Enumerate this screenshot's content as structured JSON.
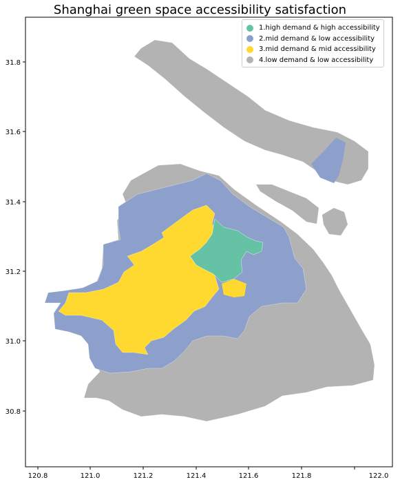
{
  "title": "Shanghai green space accessibility satisfaction",
  "legend": [
    {
      "label": "1.high demand & high accessibility",
      "color": "#66c2a5"
    },
    {
      "label": "2.mid demand & low accessibility",
      "color": "#8da0cb"
    },
    {
      "label": "3.mid demand & mid accessibility",
      "color": "#ffd92f"
    },
    {
      "label": "4.low demand & low accessibility",
      "color": "#b3b3b3"
    }
  ],
  "axes": {
    "x_ticks": [
      "120.8",
      "121.0",
      "121.2",
      "121.4",
      "121.6",
      "121.8",
      "122.0"
    ],
    "y_ticks": [
      "31.8",
      "31.6",
      "31.4",
      "31.2",
      "31.0",
      "30.8"
    ]
  }
}
